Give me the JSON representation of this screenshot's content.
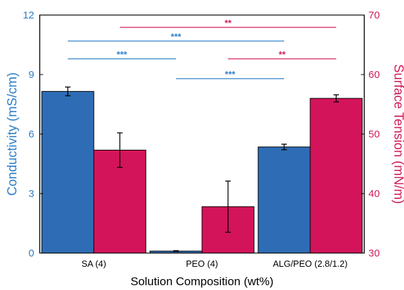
{
  "chart_data": {
    "type": "bar",
    "xlabel": "Solution Composition (wt%)",
    "categories": [
      "SA (4)",
      "PEO (4)",
      "ALG/PEO (2.8/1.2)"
    ],
    "left_axis": {
      "label": "Conductivity (mS/cm)",
      "ylim": [
        0,
        12
      ],
      "ticks": [
        "0",
        "3",
        "6",
        "9",
        "12"
      ],
      "color": "#2f7fc8"
    },
    "right_axis": {
      "label": "Surface Tension (mN/m)",
      "ylim": [
        30,
        70
      ],
      "ticks": [
        "30",
        "40",
        "50",
        "60",
        "70"
      ],
      "color": "#d01f5a"
    },
    "series": [
      {
        "axis": "left",
        "values": [
          8.15,
          0.1,
          5.35
        ],
        "errors": [
          0.22,
          0.02,
          0.14
        ],
        "fill": "#2e6db5"
      },
      {
        "axis": "right",
        "values": [
          47.3,
          37.8,
          56.0
        ],
        "errors": [
          2.9,
          4.3,
          0.6
        ],
        "fill": "#d4145a"
      }
    ],
    "significance": [
      {
        "from": 0,
        "to": 1,
        "label": "***",
        "level": 1,
        "color": "#2f7fc8"
      },
      {
        "from": 0,
        "to": 2,
        "label": "***",
        "level": 2,
        "color": "#2f7fc8"
      },
      {
        "from": 1,
        "to": 2,
        "label": "***",
        "level": 0,
        "color": "#2f7fc8"
      },
      {
        "from": 0,
        "to": 2,
        "label": "**",
        "level": 3,
        "color": "#d01f5a"
      },
      {
        "from": 1,
        "to": 2,
        "label": "**",
        "level": 1,
        "color": "#d01f5a"
      }
    ]
  }
}
